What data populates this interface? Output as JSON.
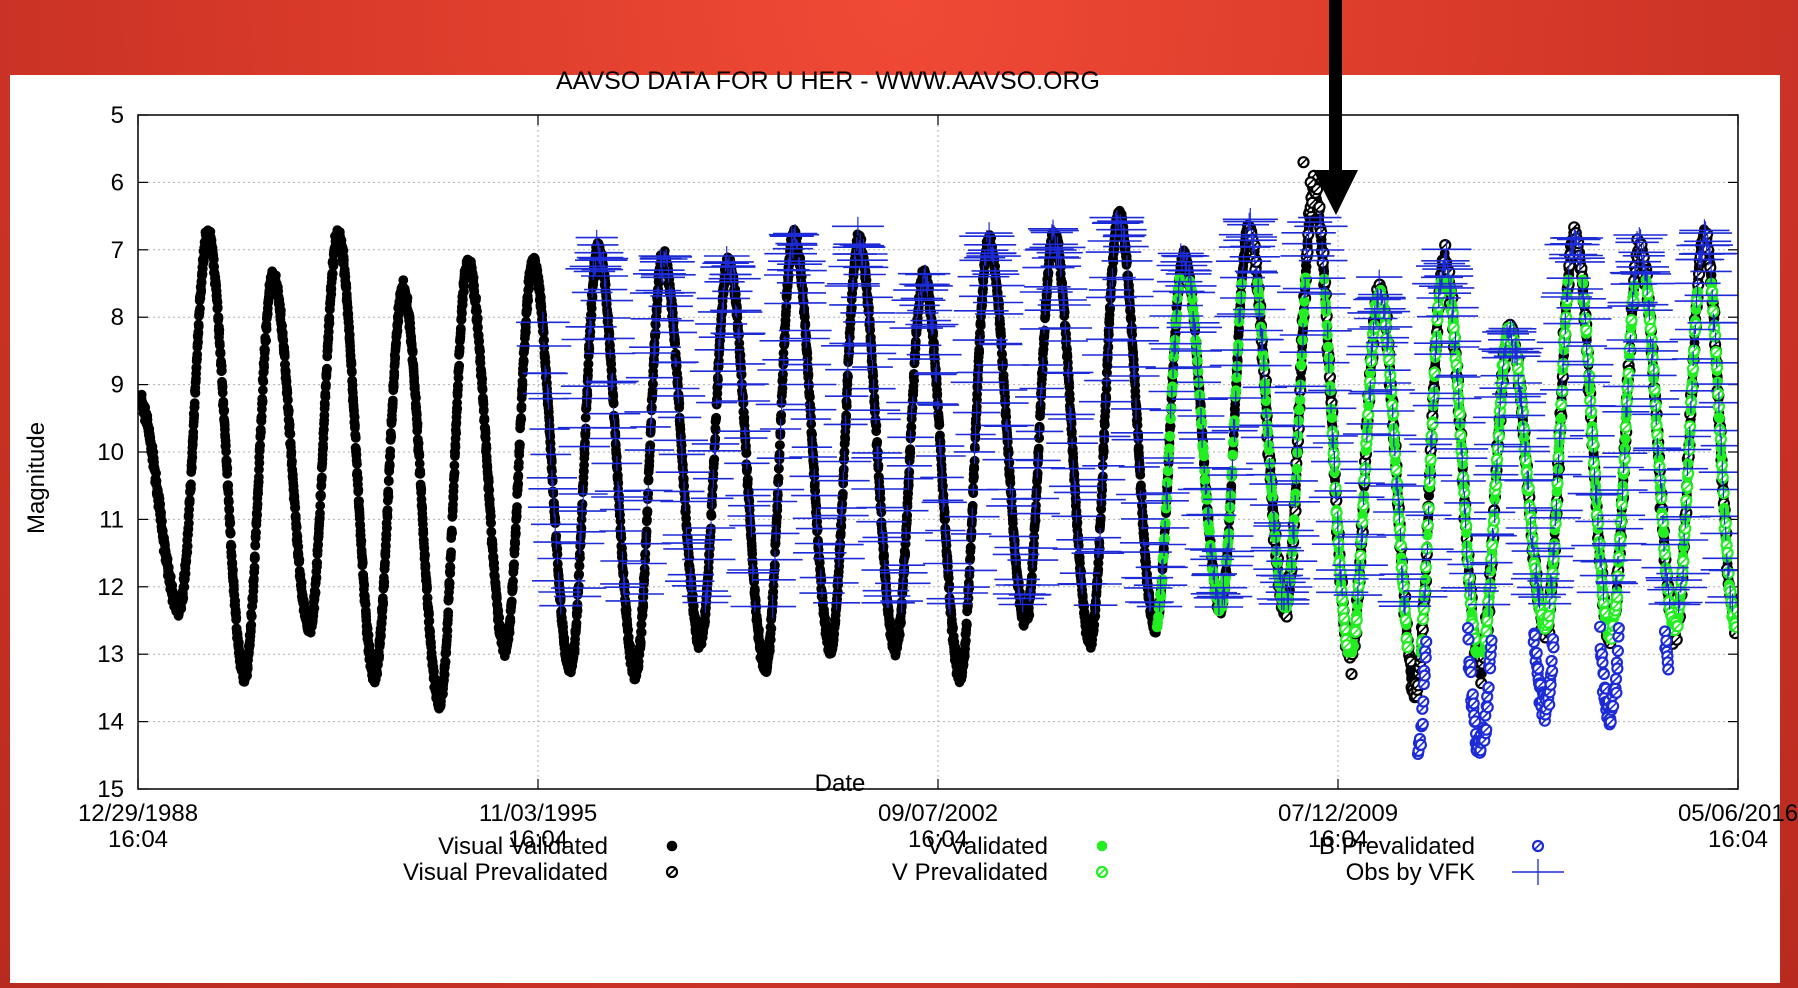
{
  "colors": {
    "background": "#d93a2a",
    "visual": "#000000",
    "v_band": "#22ee22",
    "b_band": "#1c2bd6",
    "vfk": "#1c2bd6",
    "annotation_arrow": "#000000"
  },
  "chart_data": {
    "type": "scatter",
    "title": "AAVSO DATA FOR U HER - WWW.AAVSO.ORG",
    "xlabel": "Date",
    "ylabel": "Magnitude",
    "y_inverted": true,
    "ylim": [
      5,
      15
    ],
    "xlim": [
      "1988-12-29",
      "2016-05-06"
    ],
    "y_ticks": [
      "5",
      "6",
      "7",
      "8",
      "9",
      "10",
      "11",
      "12",
      "13",
      "14",
      "15"
    ],
    "x_ticks": [
      {
        "date": "12/29/1988",
        "time": "16:04"
      },
      {
        "date": "11/03/1995",
        "time": "16:04"
      },
      {
        "date": "09/07/2002",
        "time": "16:04"
      },
      {
        "date": "07/12/2009",
        "time": "16:04"
      },
      {
        "date": "05/06/2016",
        "time": "16:04"
      }
    ],
    "grid": true,
    "legend_position": "bottom",
    "variable_star": {
      "period_days": 406,
      "max_magnitude_range": [
        6.8,
        7.6
      ],
      "min_magnitude_range": [
        11.8,
        13.6
      ]
    },
    "series": [
      {
        "name": "Visual Validated",
        "marker": "filled-circle",
        "color": "#000000",
        "range": [
          "1988-12-29",
          "2016-05-06"
        ],
        "maxima": [
          [
            "1990-03-10",
            6.8
          ],
          [
            "1991-04-20",
            7.4
          ],
          [
            "1992-05-30",
            6.8
          ],
          [
            "1993-07-10",
            7.6
          ],
          [
            "1994-08-20",
            7.2
          ],
          [
            "1995-10-01",
            7.2
          ],
          [
            "1996-11-10",
            7.0
          ],
          [
            "1997-12-20",
            7.1
          ],
          [
            "1999-02-01",
            7.2
          ],
          [
            "2000-03-15",
            6.8
          ],
          [
            "2001-04-25",
            6.9
          ],
          [
            "2002-06-05",
            7.4
          ],
          [
            "2003-07-15",
            6.9
          ],
          [
            "2004-08-25",
            6.8
          ],
          [
            "2005-10-05",
            6.5
          ],
          [
            "2006-11-15",
            7.1
          ],
          [
            "2007-12-25",
            6.7
          ],
          [
            "2009-02-05",
            6.2
          ],
          [
            "2010-03-20",
            7.7
          ],
          [
            "2011-05-01",
            7.2
          ],
          [
            "2012-06-10",
            8.2
          ],
          [
            "2013-07-20",
            6.8
          ],
          [
            "2014-09-01",
            7.0
          ],
          [
            "2015-10-10",
            6.8
          ]
        ],
        "minima": [
          [
            "1989-09-15",
            12.3
          ],
          [
            "1990-10-25",
            13.3
          ],
          [
            "1991-12-05",
            12.6
          ],
          [
            "1993-01-15",
            13.3
          ],
          [
            "1994-02-25",
            13.7
          ],
          [
            "1995-04-10",
            12.9
          ],
          [
            "1996-05-20",
            13.2
          ],
          [
            "1997-07-01",
            13.3
          ],
          [
            "1998-08-10",
            12.8
          ],
          [
            "1999-09-20",
            13.2
          ],
          [
            "2000-11-01",
            12.9
          ],
          [
            "2001-12-10",
            12.9
          ],
          [
            "2003-01-20",
            13.3
          ],
          [
            "2004-03-01",
            12.5
          ],
          [
            "2005-04-10",
            12.8
          ],
          [
            "2006-05-20",
            12.6
          ],
          [
            "2007-07-01",
            12.3
          ],
          [
            "2008-08-10",
            12.3
          ],
          [
            "2009-09-20",
            13.0
          ],
          [
            "2010-11-01",
            13.5
          ],
          [
            "2011-12-10",
            13.2
          ],
          [
            "2013-01-20",
            12.6
          ],
          [
            "2014-03-01",
            12.7
          ],
          [
            "2015-04-10",
            12.6
          ],
          [
            "2016-04-20",
            12.5
          ]
        ]
      },
      {
        "name": "Visual Prevalidated",
        "marker": "hatched-circle",
        "color": "#000000",
        "range": [
          "2008-01-01",
          "2016-05-06"
        ],
        "notable_points": [
          [
            "2008-12-01",
            5.7
          ],
          [
            "2009-01-15",
            6.0
          ]
        ]
      },
      {
        "name": "V Validated",
        "marker": "filled-circle",
        "color": "#22ee22",
        "range": [
          "2006-06-01",
          "2016-05-06"
        ],
        "magnitude_range": [
          7.4,
          13.0
        ]
      },
      {
        "name": "V Prevalidated",
        "marker": "hatched-circle",
        "color": "#22ee22",
        "range": [
          "2009-06-01",
          "2016-05-06"
        ],
        "magnitude_range": [
          7.6,
          12.9
        ]
      },
      {
        "name": "B Prevalidated",
        "marker": "hatched-circle",
        "color": "#1c2bd6",
        "range": [
          "2010-11-01",
          "2015-03-01"
        ],
        "magnitude_range": [
          10.8,
          14.5
        ]
      },
      {
        "name": "Obs by VFK",
        "marker": "plus",
        "color": "#1c2bd6",
        "range": [
          "1995-12-01",
          "2016-05-06"
        ],
        "magnitude_range": [
          6.5,
          12.3
        ]
      }
    ],
    "legend": [
      [
        "Visual Validated",
        "Visual Prevalidated"
      ],
      [
        "V Validated",
        "V Prevalidated"
      ],
      [
        "B Prevalidated",
        "Obs by VFK"
      ]
    ],
    "annotation": {
      "type": "arrow",
      "points_to": "2009-07-12"
    }
  }
}
